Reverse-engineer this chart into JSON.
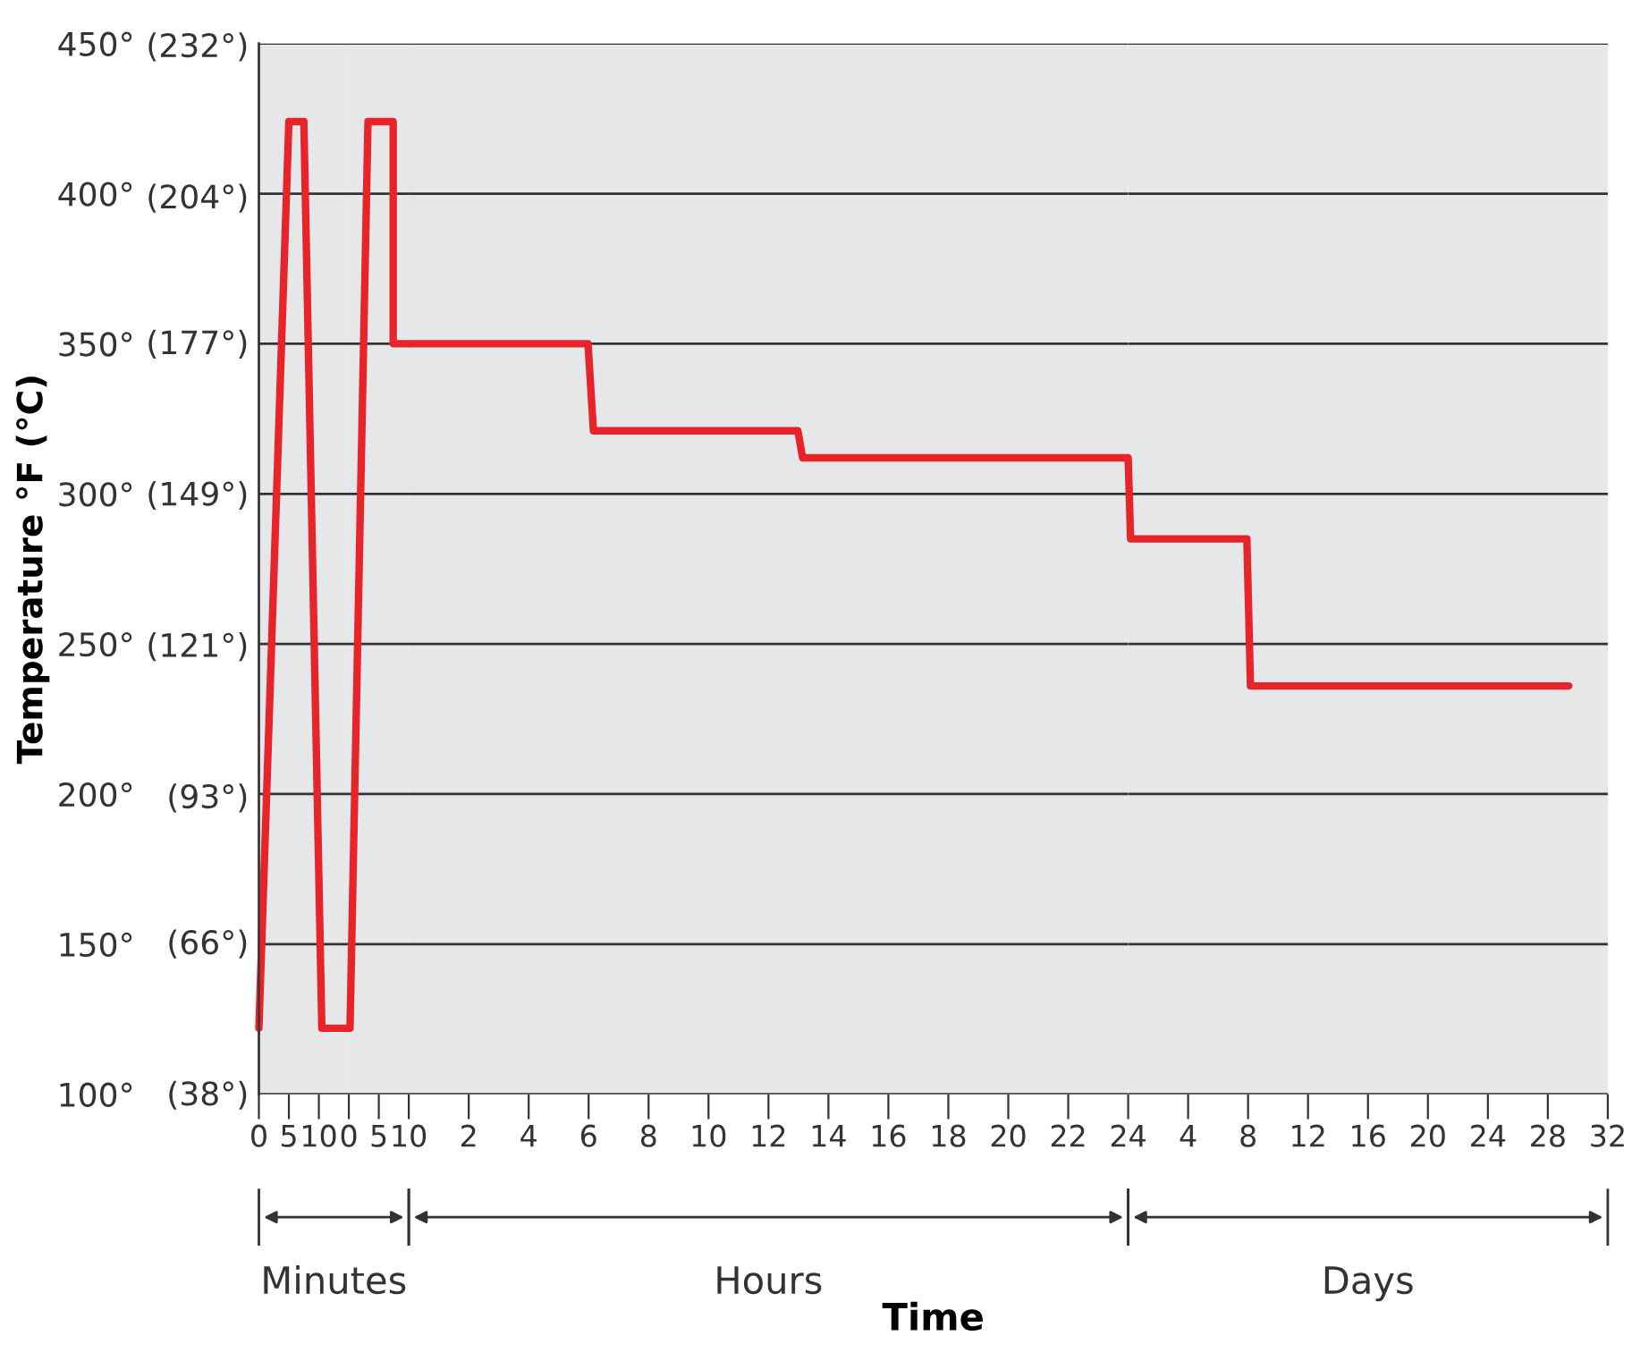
{
  "chart_data": [
    {
      "type": "line",
      "ylabel": "Temperature °F (°C)",
      "annotations": [
        "Minutes"
      ],
      "x": [
        0,
        5,
        7.5,
        10.5,
        15
      ],
      "series": [
        {
          "color": "#e8242b",
          "values": [
            122,
            424,
            424,
            122,
            122
          ]
        }
      ],
      "xlim": [
        0,
        15
      ],
      "xticks": [
        0,
        5,
        10
      ],
      "ylim": [
        100,
        450
      ],
      "yticks": [
        {
          "value": 100,
          "label": "100°"
        },
        {
          "value": 150,
          "label": "150°"
        },
        {
          "value": 200,
          "label": "200°"
        },
        {
          "value": 250,
          "label": "250°"
        },
        {
          "value": 300,
          "label": "300°"
        },
        {
          "value": 350,
          "label": "350°"
        },
        {
          "value": 400,
          "label": "400°"
        },
        {
          "value": 450,
          "label": "450°"
        }
      ],
      "y2lim": [
        37.78,
        232.22
      ],
      "y2ticks": [
        {
          "value": 38,
          "label": "(38°)"
        },
        {
          "value": 66,
          "label": "(66°)"
        },
        {
          "value": 93,
          "label": "(93°)"
        },
        {
          "value": 121,
          "label": "(121°)"
        },
        {
          "value": 149,
          "label": "(149°)"
        },
        {
          "value": 177,
          "label": "(177°)"
        },
        {
          "value": 204,
          "label": "(204°)"
        },
        {
          "value": 232,
          "label": "(232°)"
        }
      ],
      "grid": "y",
      "marker": "none",
      "line_style": "solid"
    },
    {
      "type": "line",
      "x": [
        0,
        0.2,
        3.2,
        7.4,
        7.4,
        10
      ],
      "series": [
        {
          "color": "#e8242b",
          "values": [
            122,
            122,
            424,
            424,
            350,
            350
          ]
        }
      ],
      "xlim": [
        0,
        10
      ],
      "xticks": [
        0,
        5,
        10
      ],
      "ylim": [
        100,
        450
      ],
      "tick_labels": "x",
      "grid": "y",
      "marker": "none",
      "line_style": "solid"
    },
    {
      "type": "line",
      "xlabel": "Time",
      "annotations": [
        "Hours"
      ],
      "x": [
        0,
        5.98,
        6.16,
        12.98,
        13.14,
        24
      ],
      "series": [
        {
          "color": "#e8242b",
          "values": [
            350,
            350,
            321,
            321,
            312,
            312
          ]
        }
      ],
      "xlim": [
        0,
        24
      ],
      "xticks": [
        2,
        4,
        6,
        8,
        10,
        12,
        14,
        16,
        18,
        20,
        22,
        24
      ],
      "ylim": [
        100,
        450
      ],
      "tick_labels": "x",
      "grid": "y",
      "marker": "none",
      "line_style": "solid"
    },
    {
      "type": "line",
      "annotations": [
        "Days"
      ],
      "x": [
        0,
        0.16,
        7.92,
        8.16,
        29.4
      ],
      "series": [
        {
          "color": "#e8242b",
          "values": [
            312,
            285,
            285,
            236,
            236
          ]
        }
      ],
      "xlim": [
        0,
        32
      ],
      "xticks": [
        4,
        8,
        12,
        16,
        20,
        24,
        28,
        32
      ],
      "ylim": [
        100,
        450
      ],
      "tick_labels": "x",
      "grid": "y",
      "marker": "none",
      "line_style": "solid"
    }
  ]
}
